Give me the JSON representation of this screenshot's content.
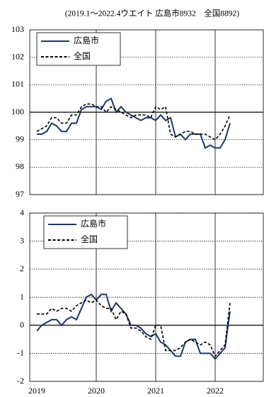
{
  "chart_data": [
    {
      "type": "line",
      "subtitle": "(2019.1～2022.4ウエイト 広島市8932　全国8892)",
      "ylim": [
        97,
        103
      ],
      "yticks": [
        97,
        98,
        99,
        100,
        101,
        102,
        103
      ],
      "grid": true,
      "reference_line": 100,
      "legend": "upper left",
      "series": [
        {
          "name": "広島市",
          "color": "#1f3864",
          "dash": false,
          "values": [
            99.2,
            99.2,
            99.3,
            99.6,
            99.5,
            99.3,
            99.3,
            99.6,
            99.6,
            100.1,
            100.2,
            100.2,
            100.2,
            100.1,
            100.4,
            100.5,
            100.0,
            100.2,
            100.0,
            99.9,
            99.8,
            99.7,
            99.8,
            99.8,
            99.7,
            99.9,
            99.7,
            99.8,
            99.1,
            99.2,
            99.0,
            99.2,
            99.2,
            99.2,
            98.7,
            98.8,
            98.7,
            98.7,
            99.0,
            99.6
          ]
        },
        {
          "name": "全国",
          "color": "#000000",
          "dash": true,
          "values": [
            99.3,
            99.4,
            99.5,
            99.8,
            99.8,
            99.6,
            99.6,
            99.9,
            99.9,
            100.2,
            100.3,
            100.3,
            100.2,
            100.2,
            100.0,
            100.2,
            100.1,
            100.0,
            99.9,
            99.8,
            99.9,
            99.9,
            99.9,
            99.8,
            100.2,
            100.1,
            100.2,
            99.2,
            99.1,
            99.2,
            99.3,
            99.3,
            99.2,
            99.2,
            99.2,
            99.1,
            99.0,
            99.2,
            99.5,
            99.9
          ]
        }
      ]
    },
    {
      "type": "line",
      "categories": [
        "2019",
        null,
        null,
        null,
        null,
        null,
        null,
        null,
        null,
        null,
        null,
        null,
        "2020",
        null,
        null,
        null,
        null,
        null,
        null,
        null,
        null,
        null,
        null,
        null,
        "2021",
        null,
        null,
        null,
        null,
        null,
        null,
        null,
        null,
        null,
        null,
        null,
        "2022",
        null,
        null,
        null
      ],
      "ylim": [
        -2,
        4
      ],
      "yticks": [
        -2,
        -1,
        0,
        1,
        2,
        3,
        4
      ],
      "grid": true,
      "reference_line": 0,
      "legend": "upper left",
      "series": [
        {
          "name": "広島市",
          "color": "#1f3864",
          "dash": false,
          "values": [
            -0.2,
            0,
            0.1,
            0.2,
            0.2,
            0,
            0.2,
            0.3,
            0.2,
            0.6,
            1.0,
            1.1,
            0.9,
            1.1,
            1.1,
            0.5,
            0.8,
            0.6,
            0.4,
            0,
            0,
            -0.1,
            -0.3,
            -0.4,
            -0.3,
            -0.6,
            -0.7,
            -0.9,
            -1.1,
            -1.1,
            -0.6,
            -0.5,
            -0.5,
            -1.0,
            -1.0,
            -1.0,
            -1.2,
            -1.0,
            -0.8,
            0.5
          ]
        },
        {
          "name": "全国",
          "color": "#000000",
          "dash": true,
          "values": [
            0.4,
            0.4,
            0.4,
            0.6,
            0.5,
            0.6,
            0.6,
            0.5,
            0.7,
            0.8,
            0.9,
            0.8,
            0.9,
            0.7,
            0.6,
            0.6,
            0.2,
            0.5,
            0.4,
            -0.1,
            -0.1,
            -0.2,
            -0.4,
            -0.5,
            0,
            0,
            -0.9,
            -0.9,
            -0.9,
            -0.8,
            -0.6,
            -0.5,
            -0.6,
            -0.7,
            -0.6,
            -0.7,
            -1.1,
            -0.9,
            -0.7,
            0.8
          ]
        }
      ]
    }
  ]
}
